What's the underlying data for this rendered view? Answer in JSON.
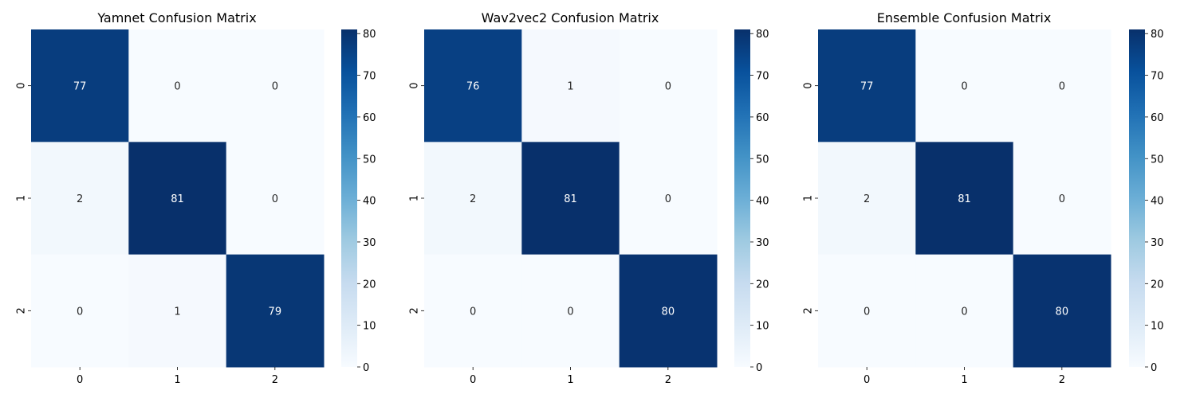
{
  "chart_data": [
    {
      "type": "heatmap",
      "title": "Yamnet Confusion Matrix",
      "x_tick_labels": [
        "0",
        "1",
        "2"
      ],
      "y_tick_labels": [
        "0",
        "1",
        "2"
      ],
      "matrix": [
        [
          77,
          0,
          0
        ],
        [
          2,
          81,
          0
        ],
        [
          0,
          1,
          79
        ]
      ],
      "colorbar": {
        "range": [
          0,
          81
        ],
        "ticks": [
          0,
          10,
          20,
          30,
          40,
          50,
          60,
          70,
          80
        ]
      },
      "colormap": "Blues"
    },
    {
      "type": "heatmap",
      "title": "Wav2vec2 Confusion Matrix",
      "x_tick_labels": [
        "0",
        "1",
        "2"
      ],
      "y_tick_labels": [
        "0",
        "1",
        "2"
      ],
      "matrix": [
        [
          76,
          1,
          0
        ],
        [
          2,
          81,
          0
        ],
        [
          0,
          0,
          80
        ]
      ],
      "colorbar": {
        "range": [
          0,
          81
        ],
        "ticks": [
          0,
          10,
          20,
          30,
          40,
          50,
          60,
          70,
          80
        ]
      },
      "colormap": "Blues"
    },
    {
      "type": "heatmap",
      "title": "Ensemble Confusion Matrix",
      "x_tick_labels": [
        "0",
        "1",
        "2"
      ],
      "y_tick_labels": [
        "0",
        "1",
        "2"
      ],
      "matrix": [
        [
          77,
          0,
          0
        ],
        [
          2,
          81,
          0
        ],
        [
          0,
          0,
          80
        ]
      ],
      "colorbar": {
        "range": [
          0,
          81
        ],
        "ticks": [
          0,
          10,
          20,
          30,
          40,
          50,
          60,
          70,
          80
        ]
      },
      "colormap": "Blues"
    }
  ]
}
